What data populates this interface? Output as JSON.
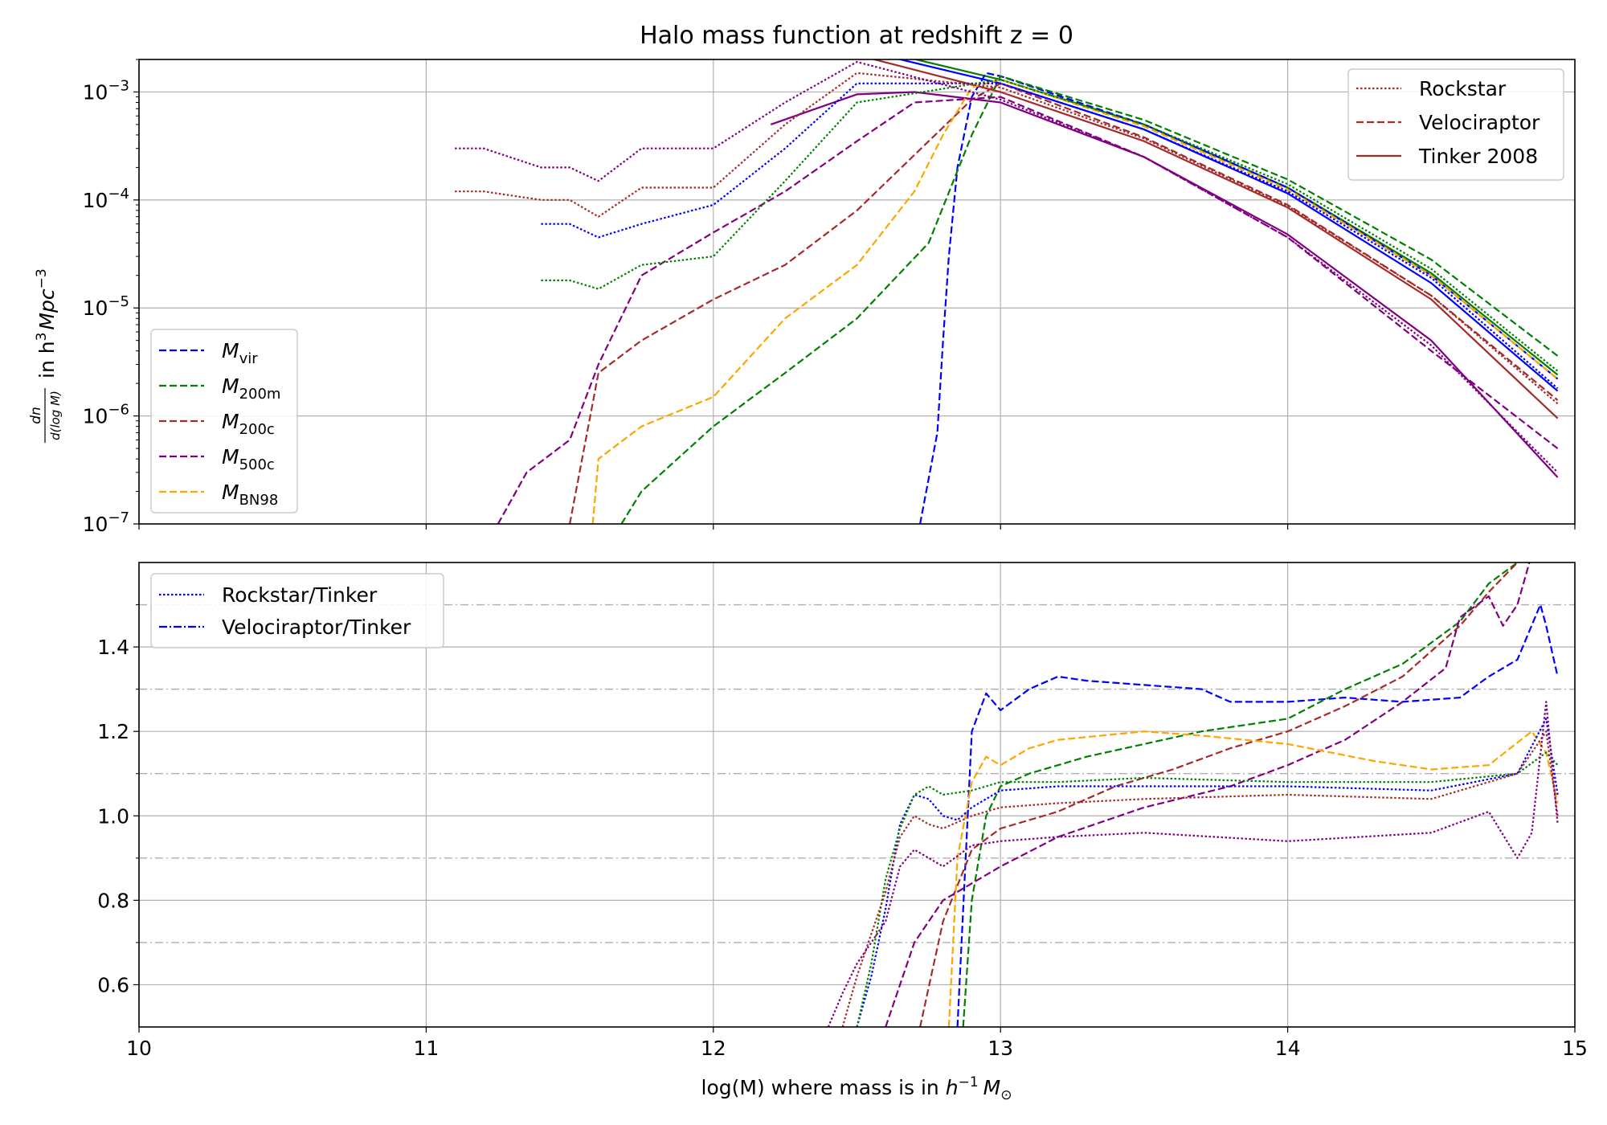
{
  "chart_data": [
    {
      "type": "line",
      "title": "Halo mass function at redshift z = 0",
      "ylabel": "dn/d(log M) in h^3 Mpc^-3",
      "ylabel_parts": {
        "frac_num": "dn",
        "frac_den": "d(log M)",
        "text": "in h",
        "sup1": "3",
        "text2": "Mpc",
        "sup2": "−3"
      },
      "yscale": "log",
      "xlim": [
        10,
        15
      ],
      "ylim": [
        1e-07,
        0.002
      ],
      "grid": true,
      "yticks": [
        {
          "value": 1e-07,
          "base": "10",
          "exp": "−7"
        },
        {
          "value": 1e-06,
          "base": "10",
          "exp": "−6"
        },
        {
          "value": 1e-05,
          "base": "10",
          "exp": "−5"
        },
        {
          "value": 0.0001,
          "base": "10",
          "exp": "−4"
        },
        {
          "value": 0.001,
          "base": "10",
          "exp": "−3"
        }
      ],
      "legend_style": {
        "position": "upper right",
        "entries": [
          {
            "label": "Rockstar",
            "linestyle": "dotted",
            "color": "#a52a2a"
          },
          {
            "label": "Velociraptor",
            "linestyle": "dashed",
            "color": "#a52a2a"
          },
          {
            "label": "Tinker 2008",
            "linestyle": "solid",
            "color": "#a52a2a"
          }
        ]
      },
      "legend_mass": {
        "position": "lower left",
        "entries": [
          {
            "symbol": "M",
            "sub": "vir",
            "color": "#0000ff"
          },
          {
            "symbol": "M",
            "sub": "200m",
            "color": "#008000"
          },
          {
            "symbol": "M",
            "sub": "200c",
            "color": "#a52a2a"
          },
          {
            "symbol": "M",
            "sub": "500c",
            "color": "#800080"
          },
          {
            "symbol": "M",
            "sub": "BN98",
            "color": "#ffa500"
          }
        ]
      },
      "series": [
        {
          "name": "Tinker 2008 M_vir",
          "color": "#0000ff",
          "linestyle": "solid",
          "x": [
            12.5,
            13.0,
            13.5,
            14.0,
            14.5,
            14.94
          ],
          "y": [
            0.0025,
            0.0012,
            0.00045,
            0.000115,
            1.7e-05,
            1.7e-06
          ]
        },
        {
          "name": "Tinker 2008 M_200m",
          "color": "#008000",
          "linestyle": "solid",
          "x": [
            12.5,
            13.0,
            13.5,
            14.0,
            14.5,
            14.94
          ],
          "y": [
            0.0027,
            0.0013,
            0.0005,
            0.00013,
            2.1e-05,
            2.4e-06
          ]
        },
        {
          "name": "Tinker 2008 M_200c",
          "color": "#a52a2a",
          "linestyle": "solid",
          "x": [
            12.5,
            13.0,
            13.5,
            14.0,
            14.5,
            14.94
          ],
          "y": [
            0.0022,
            0.001,
            0.00035,
            8.5e-05,
            1.2e-05,
            9.5e-07
          ]
        },
        {
          "name": "Tinker 2008 M_500c",
          "color": "#800080",
          "linestyle": "solid",
          "x": [
            12.2,
            12.5,
            12.7,
            13.0,
            13.5,
            14.0,
            14.5,
            14.94
          ],
          "y": [
            0.0005,
            0.00095,
            0.001,
            0.0008,
            0.00025,
            4.8e-05,
            5e-06,
            2.7e-07
          ]
        },
        {
          "name": "Velociraptor M_vir",
          "color": "#0000ff",
          "linestyle": "dashed",
          "x": [
            12.72,
            12.78,
            12.8,
            12.82,
            12.85,
            12.9,
            12.95,
            13.0,
            13.5,
            14.0,
            14.5,
            14.94
          ],
          "y": [
            1e-07,
            7e-07,
            5e-06,
            3e-05,
            0.0002,
            0.0009,
            0.0015,
            0.0014,
            0.0005,
            0.00013,
            2e-05,
            2.2e-06
          ]
        },
        {
          "name": "Velociraptor M_200m",
          "color": "#008000",
          "linestyle": "dashed",
          "x": [
            11.68,
            11.75,
            12.0,
            12.25,
            12.5,
            12.75,
            12.9,
            13.0,
            13.5,
            14.0,
            14.5,
            14.94
          ],
          "y": [
            1e-07,
            2e-07,
            8e-07,
            2.5e-06,
            8e-06,
            4e-05,
            0.0004,
            0.0014,
            0.00055,
            0.000155,
            2.8e-05,
            3.6e-06
          ]
        },
        {
          "name": "Velociraptor M_200c",
          "color": "#a52a2a",
          "linestyle": "dashed",
          "x": [
            11.5,
            11.6,
            11.75,
            12.0,
            12.25,
            12.5,
            12.75,
            12.9,
            13.0,
            13.5,
            14.0,
            14.5,
            14.94
          ],
          "y": [
            1e-07,
            2.5e-06,
            5e-06,
            1.2e-05,
            2.5e-05,
            8e-05,
            0.00035,
            0.00085,
            0.0012,
            0.00038,
            9e-05,
            1.3e-05,
            1.4e-06
          ]
        },
        {
          "name": "Velociraptor M_500c",
          "color": "#800080",
          "linestyle": "dashed",
          "x": [
            11.25,
            11.35,
            11.5,
            11.6,
            11.75,
            12.0,
            12.25,
            12.5,
            12.7,
            13.0,
            13.5,
            14.0,
            14.5,
            14.94
          ],
          "y": [
            1e-07,
            3e-07,
            6e-07,
            3e-06,
            2e-05,
            5e-05,
            0.00012,
            0.00035,
            0.0008,
            0.0009,
            0.00025,
            4.5e-05,
            4e-06,
            5e-07
          ]
        },
        {
          "name": "Velociraptor M_BN98",
          "color": "#ffa500",
          "linestyle": "dashed",
          "x": [
            11.58,
            11.6,
            11.75,
            12.0,
            12.25,
            12.5,
            12.7,
            12.8,
            12.9,
            13.0,
            13.5,
            14.0,
            14.5,
            14.94
          ],
          "y": [
            1e-07,
            4e-07,
            8e-07,
            1.5e-06,
            8e-06,
            2.5e-05,
            0.00012,
            0.0004,
            0.0011,
            0.0013,
            0.00048,
            0.000125,
            2e-05,
            2.2e-06
          ]
        },
        {
          "name": "Rockstar M_vir",
          "color": "#0000ff",
          "linestyle": "dotted",
          "x": [
            11.4,
            11.5,
            11.6,
            11.75,
            12.0,
            12.25,
            12.5,
            13.0,
            13.5,
            14.0,
            14.5,
            14.94
          ],
          "y": [
            6e-05,
            6e-05,
            4.5e-05,
            6e-05,
            9e-05,
            0.0003,
            0.0012,
            0.0012,
            0.00045,
            0.00012,
            1.9e-05,
            1.8e-06
          ]
        },
        {
          "name": "Rockstar M_200m",
          "color": "#008000",
          "linestyle": "dotted",
          "x": [
            11.4,
            11.5,
            11.6,
            11.75,
            12.0,
            12.25,
            12.5,
            13.0,
            13.5,
            14.0,
            14.5,
            14.94
          ],
          "y": [
            1.8e-05,
            1.8e-05,
            1.5e-05,
            2.5e-05,
            3e-05,
            0.00015,
            0.0008,
            0.0013,
            0.0005,
            0.00014,
            2.3e-05,
            2.6e-06
          ]
        },
        {
          "name": "Rockstar M_200c",
          "color": "#a52a2a",
          "linestyle": "dotted",
          "x": [
            11.1,
            11.2,
            11.4,
            11.5,
            11.6,
            11.75,
            12.0,
            12.25,
            12.5,
            13.0,
            13.5,
            14.0,
            14.5,
            14.94
          ],
          "y": [
            0.00012,
            0.00012,
            0.0001,
            0.0001,
            7e-05,
            0.00013,
            0.00013,
            0.0005,
            0.0015,
            0.0011,
            0.00037,
            8.8e-05,
            1.3e-05,
            1.3e-06
          ]
        },
        {
          "name": "Rockstar M_500c",
          "color": "#800080",
          "linestyle": "dotted",
          "x": [
            11.1,
            11.2,
            11.4,
            11.5,
            11.6,
            11.75,
            12.0,
            12.25,
            12.5,
            13.0,
            13.5,
            14.0,
            14.5,
            14.94
          ],
          "y": [
            0.0003,
            0.0003,
            0.0002,
            0.0002,
            0.00015,
            0.0003,
            0.0003,
            0.0008,
            0.0019,
            0.00085,
            0.00025,
            4.5e-05,
            4.5e-06,
            3e-07
          ]
        }
      ]
    },
    {
      "type": "line",
      "xlabel": "log(M) where mass is in h^-1 M_sun",
      "xlabel_parts": {
        "text": "log(M) where mass is in ",
        "h": "h",
        "sup": "−1",
        "m": "M",
        "sun": "⊙"
      },
      "xlim": [
        10,
        15
      ],
      "ylim": [
        0.5,
        1.6
      ],
      "grid": true,
      "xticks": [
        "10",
        "11",
        "12",
        "13",
        "14",
        "15"
      ],
      "yticks": [
        "0.6",
        "0.8",
        "1.0",
        "1.2",
        "1.4"
      ],
      "reference_lines": [
        0.7,
        0.9,
        1.1,
        1.3,
        1.5
      ],
      "legend": {
        "position": "upper left",
        "entries": [
          {
            "label": "Rockstar/Tinker",
            "linestyle": "dotted",
            "color": "#0000ff"
          },
          {
            "label": "Velociraptor/Tinker",
            "linestyle": "dashdot",
            "color": "#0000ff"
          }
        ]
      },
      "series": [
        {
          "name": "Velociraptor/Tinker M_vir",
          "color": "#0000ff",
          "linestyle": "dashed",
          "x": [
            12.85,
            12.9,
            12.95,
            13.0,
            13.1,
            13.2,
            13.3,
            13.5,
            13.7,
            13.8,
            14.0,
            14.2,
            14.4,
            14.6,
            14.7,
            14.8,
            14.88,
            14.9,
            14.94
          ],
          "y": [
            0.5,
            1.2,
            1.29,
            1.25,
            1.3,
            1.33,
            1.32,
            1.31,
            1.3,
            1.27,
            1.27,
            1.28,
            1.27,
            1.28,
            1.33,
            1.37,
            1.5,
            1.45,
            1.33
          ]
        },
        {
          "name": "Velociraptor/Tinker M_200m",
          "color": "#008000",
          "linestyle": "dashed",
          "x": [
            12.87,
            12.9,
            12.95,
            13.0,
            13.1,
            13.3,
            13.5,
            13.7,
            14.0,
            14.2,
            14.4,
            14.6,
            14.7,
            14.8,
            14.85
          ],
          "y": [
            0.5,
            0.8,
            1.0,
            1.07,
            1.1,
            1.14,
            1.17,
            1.2,
            1.23,
            1.3,
            1.36,
            1.46,
            1.55,
            1.6,
            1.65
          ]
        },
        {
          "name": "Velociraptor/Tinker M_200c",
          "color": "#a52a2a",
          "linestyle": "dashed",
          "x": [
            12.72,
            12.8,
            12.9,
            13.0,
            13.2,
            13.4,
            13.6,
            13.8,
            14.0,
            14.2,
            14.4,
            14.6,
            14.7,
            14.8,
            14.85
          ],
          "y": [
            0.5,
            0.75,
            0.92,
            0.97,
            1.01,
            1.07,
            1.11,
            1.16,
            1.2,
            1.26,
            1.33,
            1.45,
            1.53,
            1.6,
            1.65
          ]
        },
        {
          "name": "Velociraptor/Tinker M_500c",
          "color": "#800080",
          "linestyle": "dashed",
          "x": [
            12.6,
            12.7,
            12.8,
            13.0,
            13.2,
            13.5,
            13.8,
            14.0,
            14.2,
            14.4,
            14.55,
            14.6,
            14.7,
            14.75,
            14.8,
            14.85
          ],
          "y": [
            0.5,
            0.7,
            0.8,
            0.88,
            0.95,
            1.02,
            1.07,
            1.12,
            1.18,
            1.27,
            1.35,
            1.47,
            1.52,
            1.45,
            1.5,
            1.62
          ]
        },
        {
          "name": "Velociraptor/Tinker M_BN98",
          "color": "#ffa500",
          "linestyle": "dashed",
          "x": [
            12.82,
            12.85,
            12.9,
            12.95,
            13.0,
            13.1,
            13.2,
            13.5,
            13.7,
            14.0,
            14.3,
            14.5,
            14.7,
            14.85,
            14.9,
            14.94
          ],
          "y": [
            0.5,
            0.9,
            1.08,
            1.14,
            1.12,
            1.16,
            1.18,
            1.2,
            1.19,
            1.17,
            1.13,
            1.11,
            1.12,
            1.2,
            1.15,
            1.03
          ]
        },
        {
          "name": "Rockstar/Tinker M_vir",
          "color": "#0000ff",
          "linestyle": "dotted",
          "x": [
            12.5,
            12.55,
            12.6,
            12.65,
            12.7,
            12.75,
            12.8,
            12.85,
            12.9,
            13.0,
            13.2,
            13.5,
            14.0,
            14.5,
            14.8,
            14.9,
            14.94
          ],
          "y": [
            0.5,
            0.62,
            0.78,
            0.98,
            1.05,
            1.04,
            1.0,
            0.99,
            1.02,
            1.06,
            1.07,
            1.07,
            1.07,
            1.06,
            1.1,
            1.23,
            1.05
          ]
        },
        {
          "name": "Rockstar/Tinker M_200m",
          "color": "#008000",
          "linestyle": "dotted",
          "x": [
            12.5,
            12.55,
            12.6,
            12.65,
            12.7,
            12.75,
            12.8,
            12.9,
            13.0,
            13.2,
            13.5,
            14.0,
            14.5,
            14.8,
            14.9,
            14.94
          ],
          "y": [
            0.5,
            0.65,
            0.85,
            0.97,
            1.05,
            1.07,
            1.05,
            1.06,
            1.08,
            1.08,
            1.09,
            1.08,
            1.08,
            1.1,
            1.15,
            1.12
          ]
        },
        {
          "name": "Rockstar/Tinker M_200c",
          "color": "#a52a2a",
          "linestyle": "dotted",
          "x": [
            12.45,
            12.5,
            12.6,
            12.65,
            12.7,
            12.75,
            12.8,
            12.9,
            13.0,
            13.2,
            13.5,
            14.0,
            14.5,
            14.8,
            14.9,
            14.94
          ],
          "y": [
            0.5,
            0.62,
            0.82,
            0.95,
            1.0,
            0.98,
            0.97,
            1.0,
            1.02,
            1.03,
            1.04,
            1.05,
            1.04,
            1.1,
            1.2,
            1.0
          ]
        },
        {
          "name": "Rockstar/Tinker M_500c",
          "color": "#800080",
          "linestyle": "dotted",
          "x": [
            12.4,
            12.45,
            12.5,
            12.6,
            12.65,
            12.7,
            12.75,
            12.8,
            12.9,
            13.0,
            13.2,
            13.5,
            14.0,
            14.5,
            14.7,
            14.8,
            14.85,
            14.9,
            14.94
          ],
          "y": [
            0.5,
            0.58,
            0.65,
            0.75,
            0.88,
            0.92,
            0.9,
            0.88,
            0.93,
            0.94,
            0.95,
            0.96,
            0.94,
            0.96,
            1.01,
            0.9,
            0.96,
            1.27,
            0.98
          ]
        }
      ]
    }
  ]
}
